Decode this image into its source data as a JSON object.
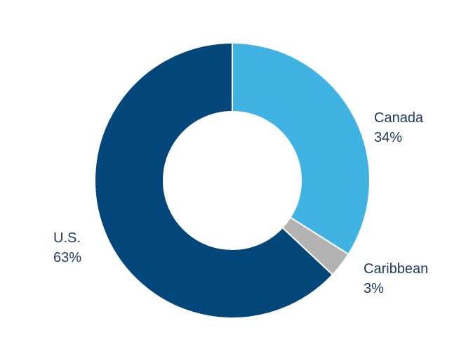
{
  "chart_data": {
    "type": "pie",
    "donut": true,
    "title": "",
    "slices": [
      {
        "label": "Canada",
        "value": 34,
        "display": "34%",
        "color": "#41b3e2"
      },
      {
        "label": "Caribbean",
        "value": 3,
        "display": "3%",
        "color": "#b3b3b3"
      },
      {
        "label": "U.S.",
        "value": 63,
        "display": "63%",
        "color": "#02467a"
      }
    ],
    "start_angle_deg": 0,
    "direction": "clockwise",
    "legend": "none",
    "label_color": "#1f3a5f",
    "background": "#ffffff"
  }
}
